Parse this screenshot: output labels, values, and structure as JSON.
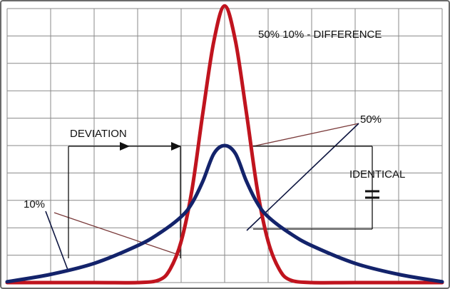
{
  "chart_data": {
    "type": "line",
    "title": "50% 10% - DIFFERENCE",
    "xlabel": "",
    "ylabel": "",
    "grid": true,
    "xlim": [
      -10,
      10
    ],
    "ylim": [
      0,
      10
    ],
    "series": [
      {
        "color": "#c0141e",
        "x": [
          -10,
          -6,
          -4,
          -3,
          -2.5,
          -2,
          -1.5,
          -1,
          -0.5,
          0,
          0.5,
          1,
          1.5,
          2,
          2.5,
          3,
          4,
          6,
          10
        ],
        "y": [
          0,
          0,
          0,
          0.1,
          0.5,
          1.5,
          3.4,
          6.2,
          8.8,
          10.1,
          8.8,
          6.2,
          3.4,
          1.5,
          0.5,
          0.1,
          0,
          0,
          0
        ]
      },
      {
        "color": "#13236b",
        "x": [
          -10,
          -8,
          -6,
          -4,
          -3,
          -2,
          -1.5,
          -1,
          -0.5,
          0,
          0.5,
          1,
          1.5,
          2,
          3,
          4,
          6,
          8,
          10
        ],
        "y": [
          0.03,
          0.3,
          0.7,
          1.35,
          1.8,
          2.4,
          2.9,
          3.7,
          4.7,
          5.0,
          4.7,
          3.7,
          2.9,
          2.4,
          1.8,
          1.35,
          0.7,
          0.3,
          0.03
        ]
      }
    ],
    "annotations": [
      {
        "id": "deviation",
        "text": "DEVIATION"
      },
      {
        "id": "p50",
        "text": "50%"
      },
      {
        "id": "p10",
        "text": "10%"
      },
      {
        "id": "identical",
        "text": "IDENTICAL"
      }
    ]
  },
  "colors": {
    "grid": "#8a8a8a",
    "pointer": "#7a3a3a",
    "frame": "#6a6a6a"
  }
}
